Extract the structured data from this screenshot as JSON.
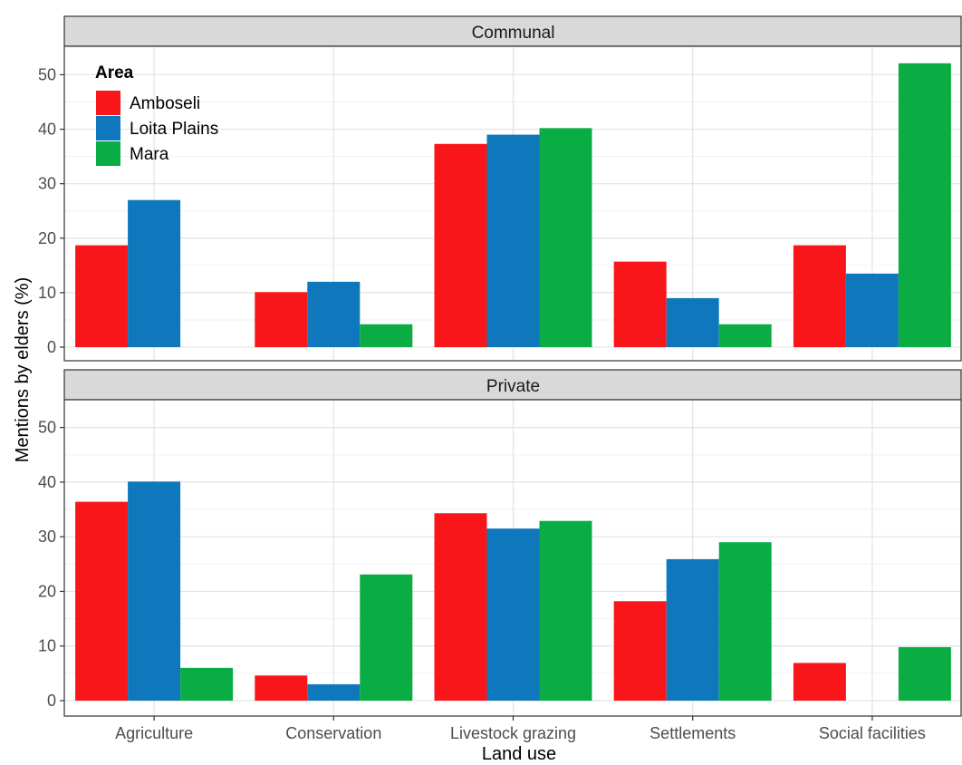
{
  "chart_data": {
    "type": "bar",
    "xlabel": "Land use",
    "ylabel": "Mentions by elders (%)",
    "ylim": [
      0,
      55
    ],
    "yticks": [
      0,
      10,
      20,
      30,
      40,
      50
    ],
    "grid": true,
    "legend": {
      "title": "Area",
      "placement": "top-left"
    },
    "categories": [
      "Agriculture",
      "Conservation",
      "Livestock grazing",
      "Settlements",
      "Social facilities"
    ],
    "series_names": [
      "Amboseli",
      "Loita Plains",
      "Mara"
    ],
    "colors": [
      "#f8161b",
      "#0f78bc",
      "#0aad43"
    ],
    "panels": [
      {
        "title": "Communal",
        "series": [
          {
            "name": "Amboseli",
            "values": [
              18.7,
              10.1,
              37.3,
              15.7,
              18.7
            ]
          },
          {
            "name": "Loita Plains",
            "values": [
              27.0,
              12.0,
              39.0,
              9.0,
              13.5
            ]
          },
          {
            "name": "Mara",
            "values": [
              0,
              4.2,
              40.2,
              4.2,
              52.1
            ]
          }
        ]
      },
      {
        "title": "Private",
        "series": [
          {
            "name": "Amboseli",
            "values": [
              36.4,
              4.6,
              34.3,
              18.2,
              6.9
            ]
          },
          {
            "name": "Loita Plains",
            "values": [
              40.1,
              3.0,
              31.5,
              25.9,
              0
            ]
          },
          {
            "name": "Mara",
            "values": [
              6.0,
              23.1,
              32.9,
              29.0,
              9.8
            ]
          }
        ]
      }
    ]
  }
}
